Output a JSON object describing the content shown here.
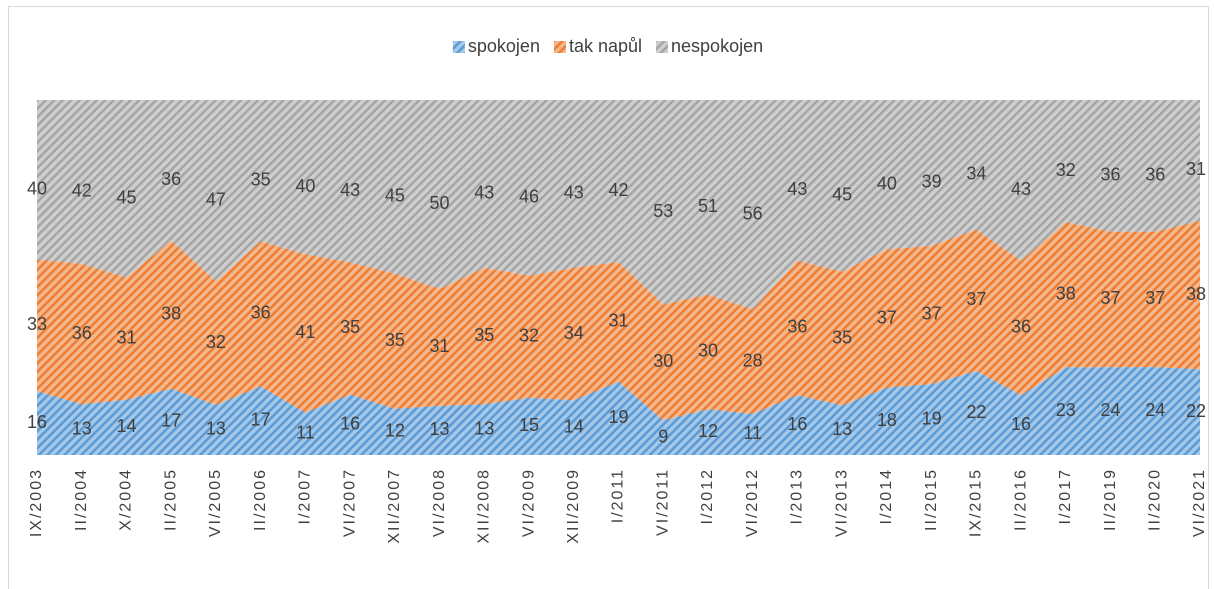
{
  "chart_data": {
    "type": "area",
    "stacking": "percent",
    "categories": [
      "IX/2003",
      "II/2004",
      "X/2004",
      "II/2005",
      "VI/2005",
      "II/2006",
      "I/2007",
      "VI/2007",
      "XII/2007",
      "VI/2008",
      "XII/2008",
      "VI/2009",
      "XII/2009",
      "I/2011",
      "VI/2011",
      "I/2012",
      "VI/2012",
      "I/2013",
      "VI/2013",
      "I/2014",
      "II/2015",
      "IX/2015",
      "II/2016",
      "I/2017",
      "II/2019",
      "II/2020",
      "VI/2021"
    ],
    "series": [
      {
        "name": "spokojen",
        "color": "#5b9bd5",
        "values": [
          16,
          13,
          14,
          17,
          13,
          17,
          11,
          16,
          12,
          13,
          13,
          15,
          14,
          19,
          9,
          12,
          11,
          16,
          13,
          18,
          19,
          22,
          16,
          23,
          24,
          24,
          22
        ]
      },
      {
        "name": "tak napůl",
        "color": "#ed7d31",
        "values": [
          33,
          36,
          31,
          38,
          32,
          36,
          41,
          35,
          35,
          31,
          35,
          32,
          34,
          31,
          30,
          30,
          28,
          36,
          35,
          37,
          37,
          37,
          36,
          38,
          37,
          37,
          38
        ]
      },
      {
        "name": "nespokojen",
        "color": "#a5a5a5",
        "values": [
          40,
          42,
          45,
          36,
          47,
          35,
          40,
          43,
          45,
          50,
          43,
          46,
          43,
          42,
          53,
          51,
          56,
          43,
          45,
          40,
          39,
          34,
          43,
          32,
          36,
          36,
          31
        ]
      }
    ],
    "legend": "top"
  }
}
